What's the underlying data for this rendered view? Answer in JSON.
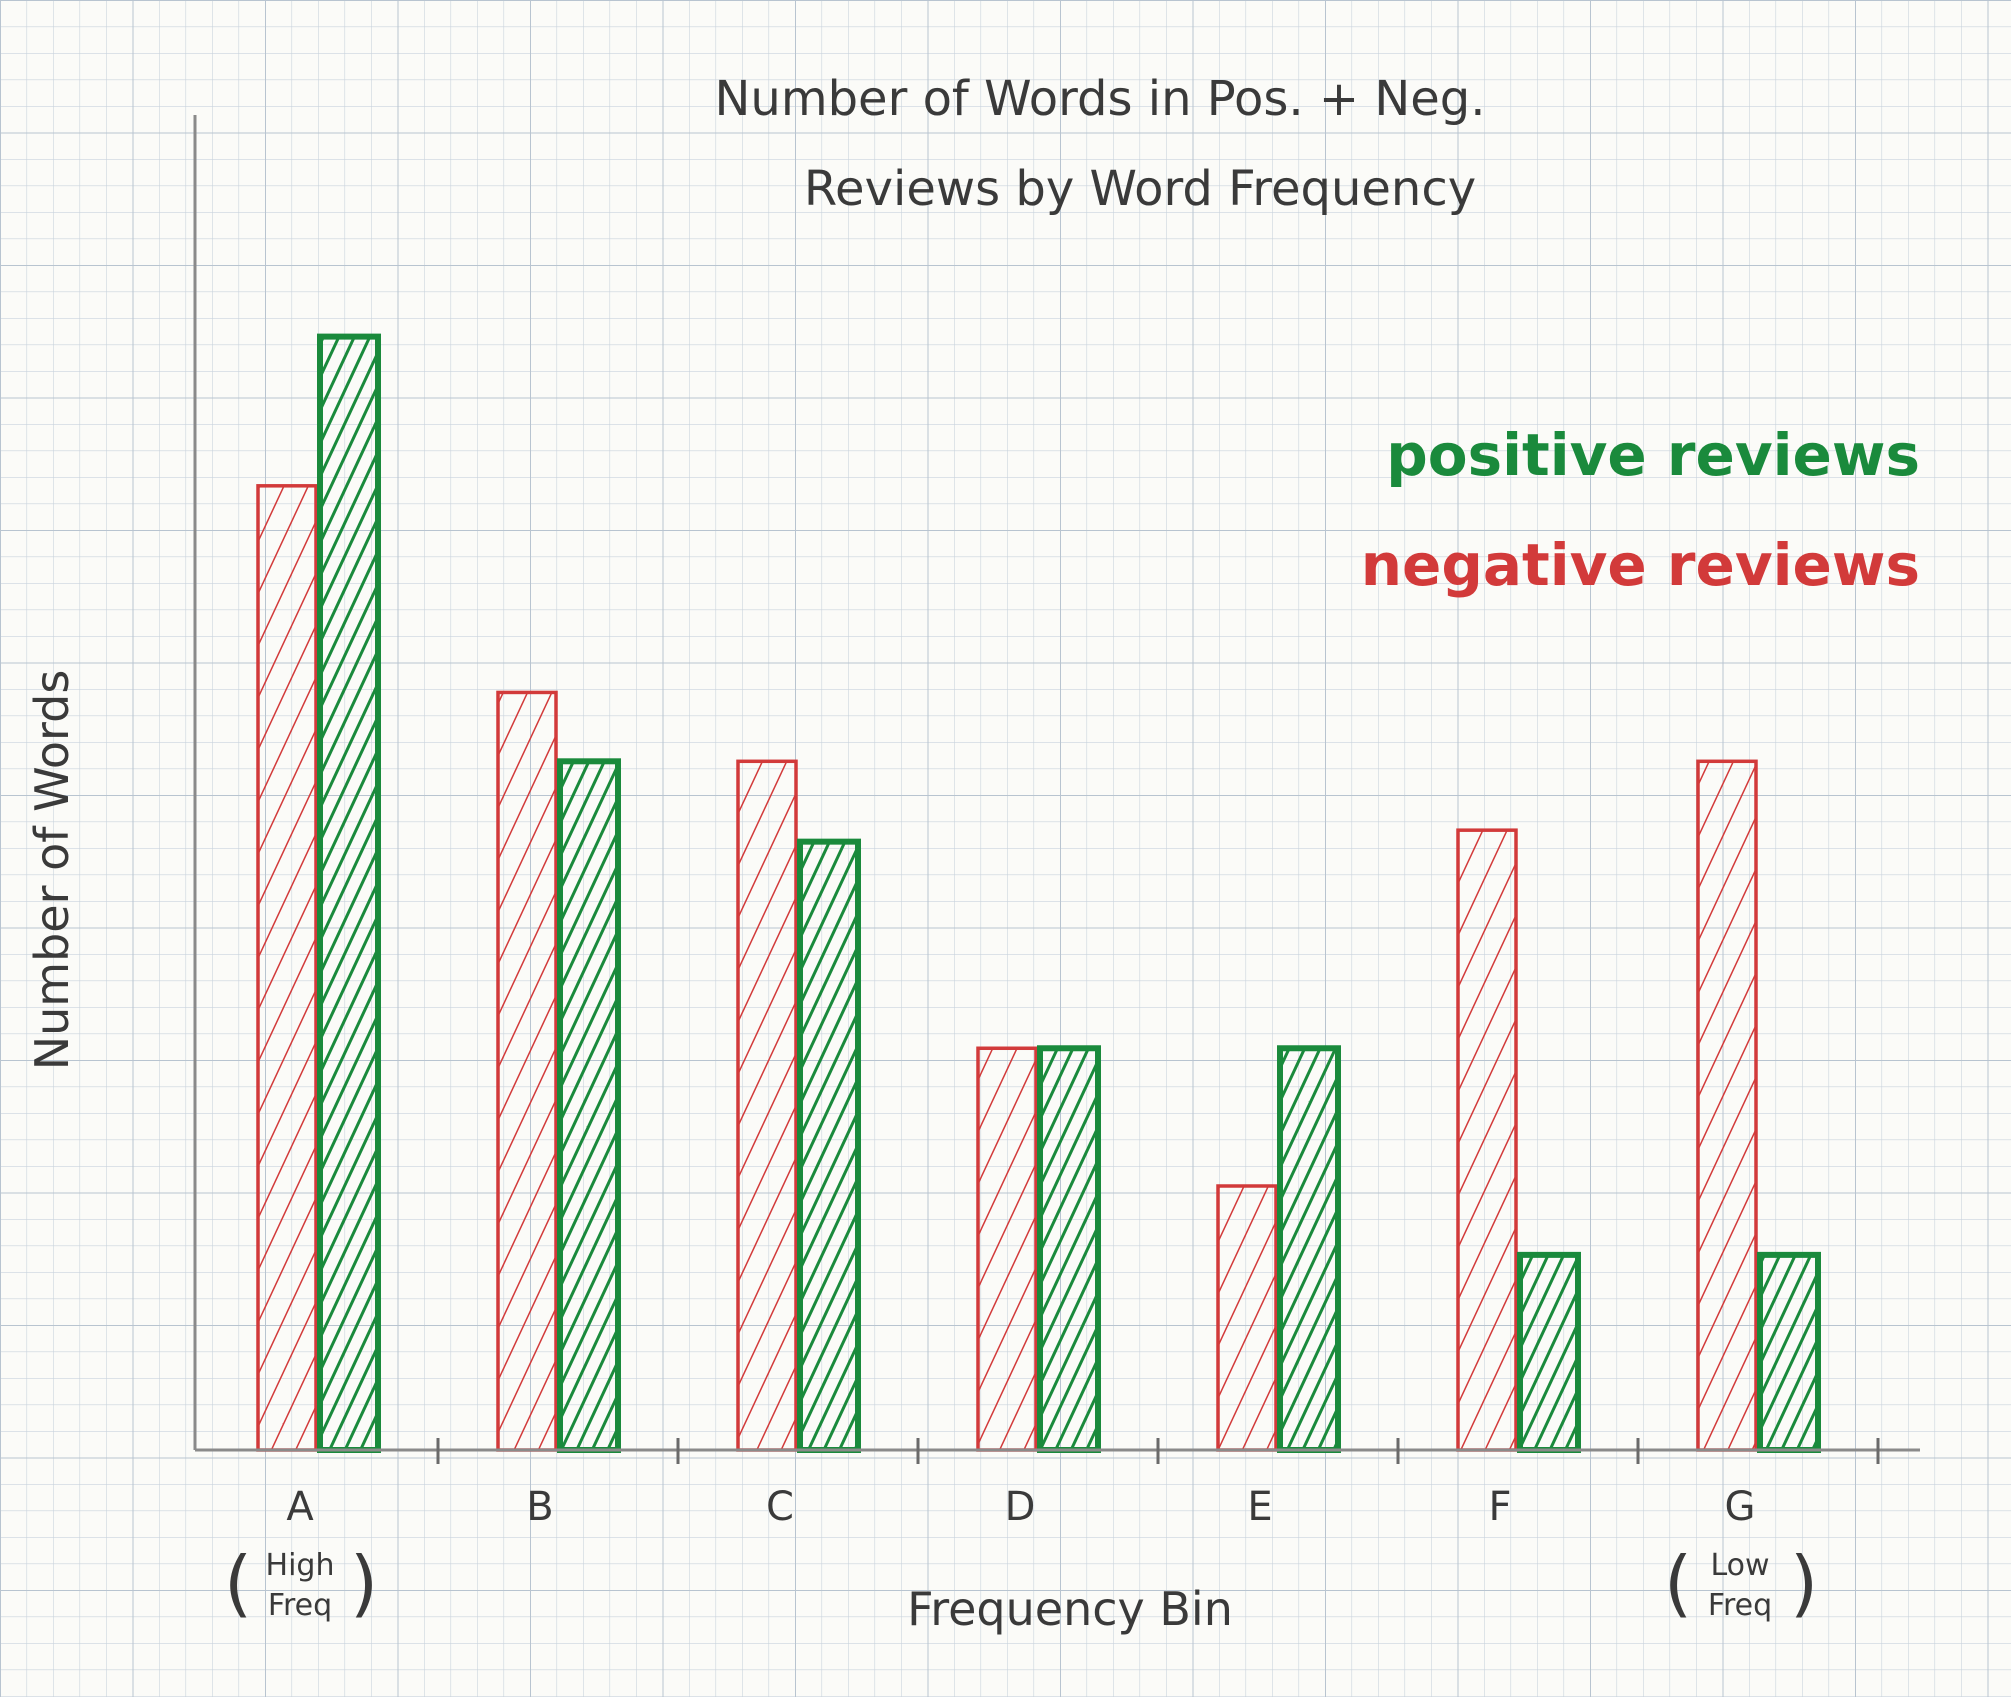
{
  "chart_data": {
    "type": "bar",
    "title_lines": [
      "Number of Words in Pos. + Neg.",
      "Reviews by Word Frequency"
    ],
    "xlabel": "Frequency Bin",
    "ylabel": "Number of Words",
    "categories": [
      "A",
      "B",
      "C",
      "D",
      "E",
      "F",
      "G"
    ],
    "category_notes": {
      "A": [
        "High",
        "Freq"
      ],
      "G": [
        "Low",
        "Freq"
      ]
    },
    "series": [
      {
        "name": "negative reviews",
        "color": "#d23a3a",
        "values": [
          84,
          66,
          60,
          35,
          23,
          54,
          60
        ]
      },
      {
        "name": "positive reviews",
        "color": "#1a8a3c",
        "values": [
          97,
          60,
          53,
          35,
          35,
          17,
          17
        ]
      }
    ],
    "ylim": [
      0,
      115
    ],
    "grid": true,
    "legend_position": "top-right",
    "legend_order": [
      "positive reviews",
      "negative reviews"
    ]
  }
}
